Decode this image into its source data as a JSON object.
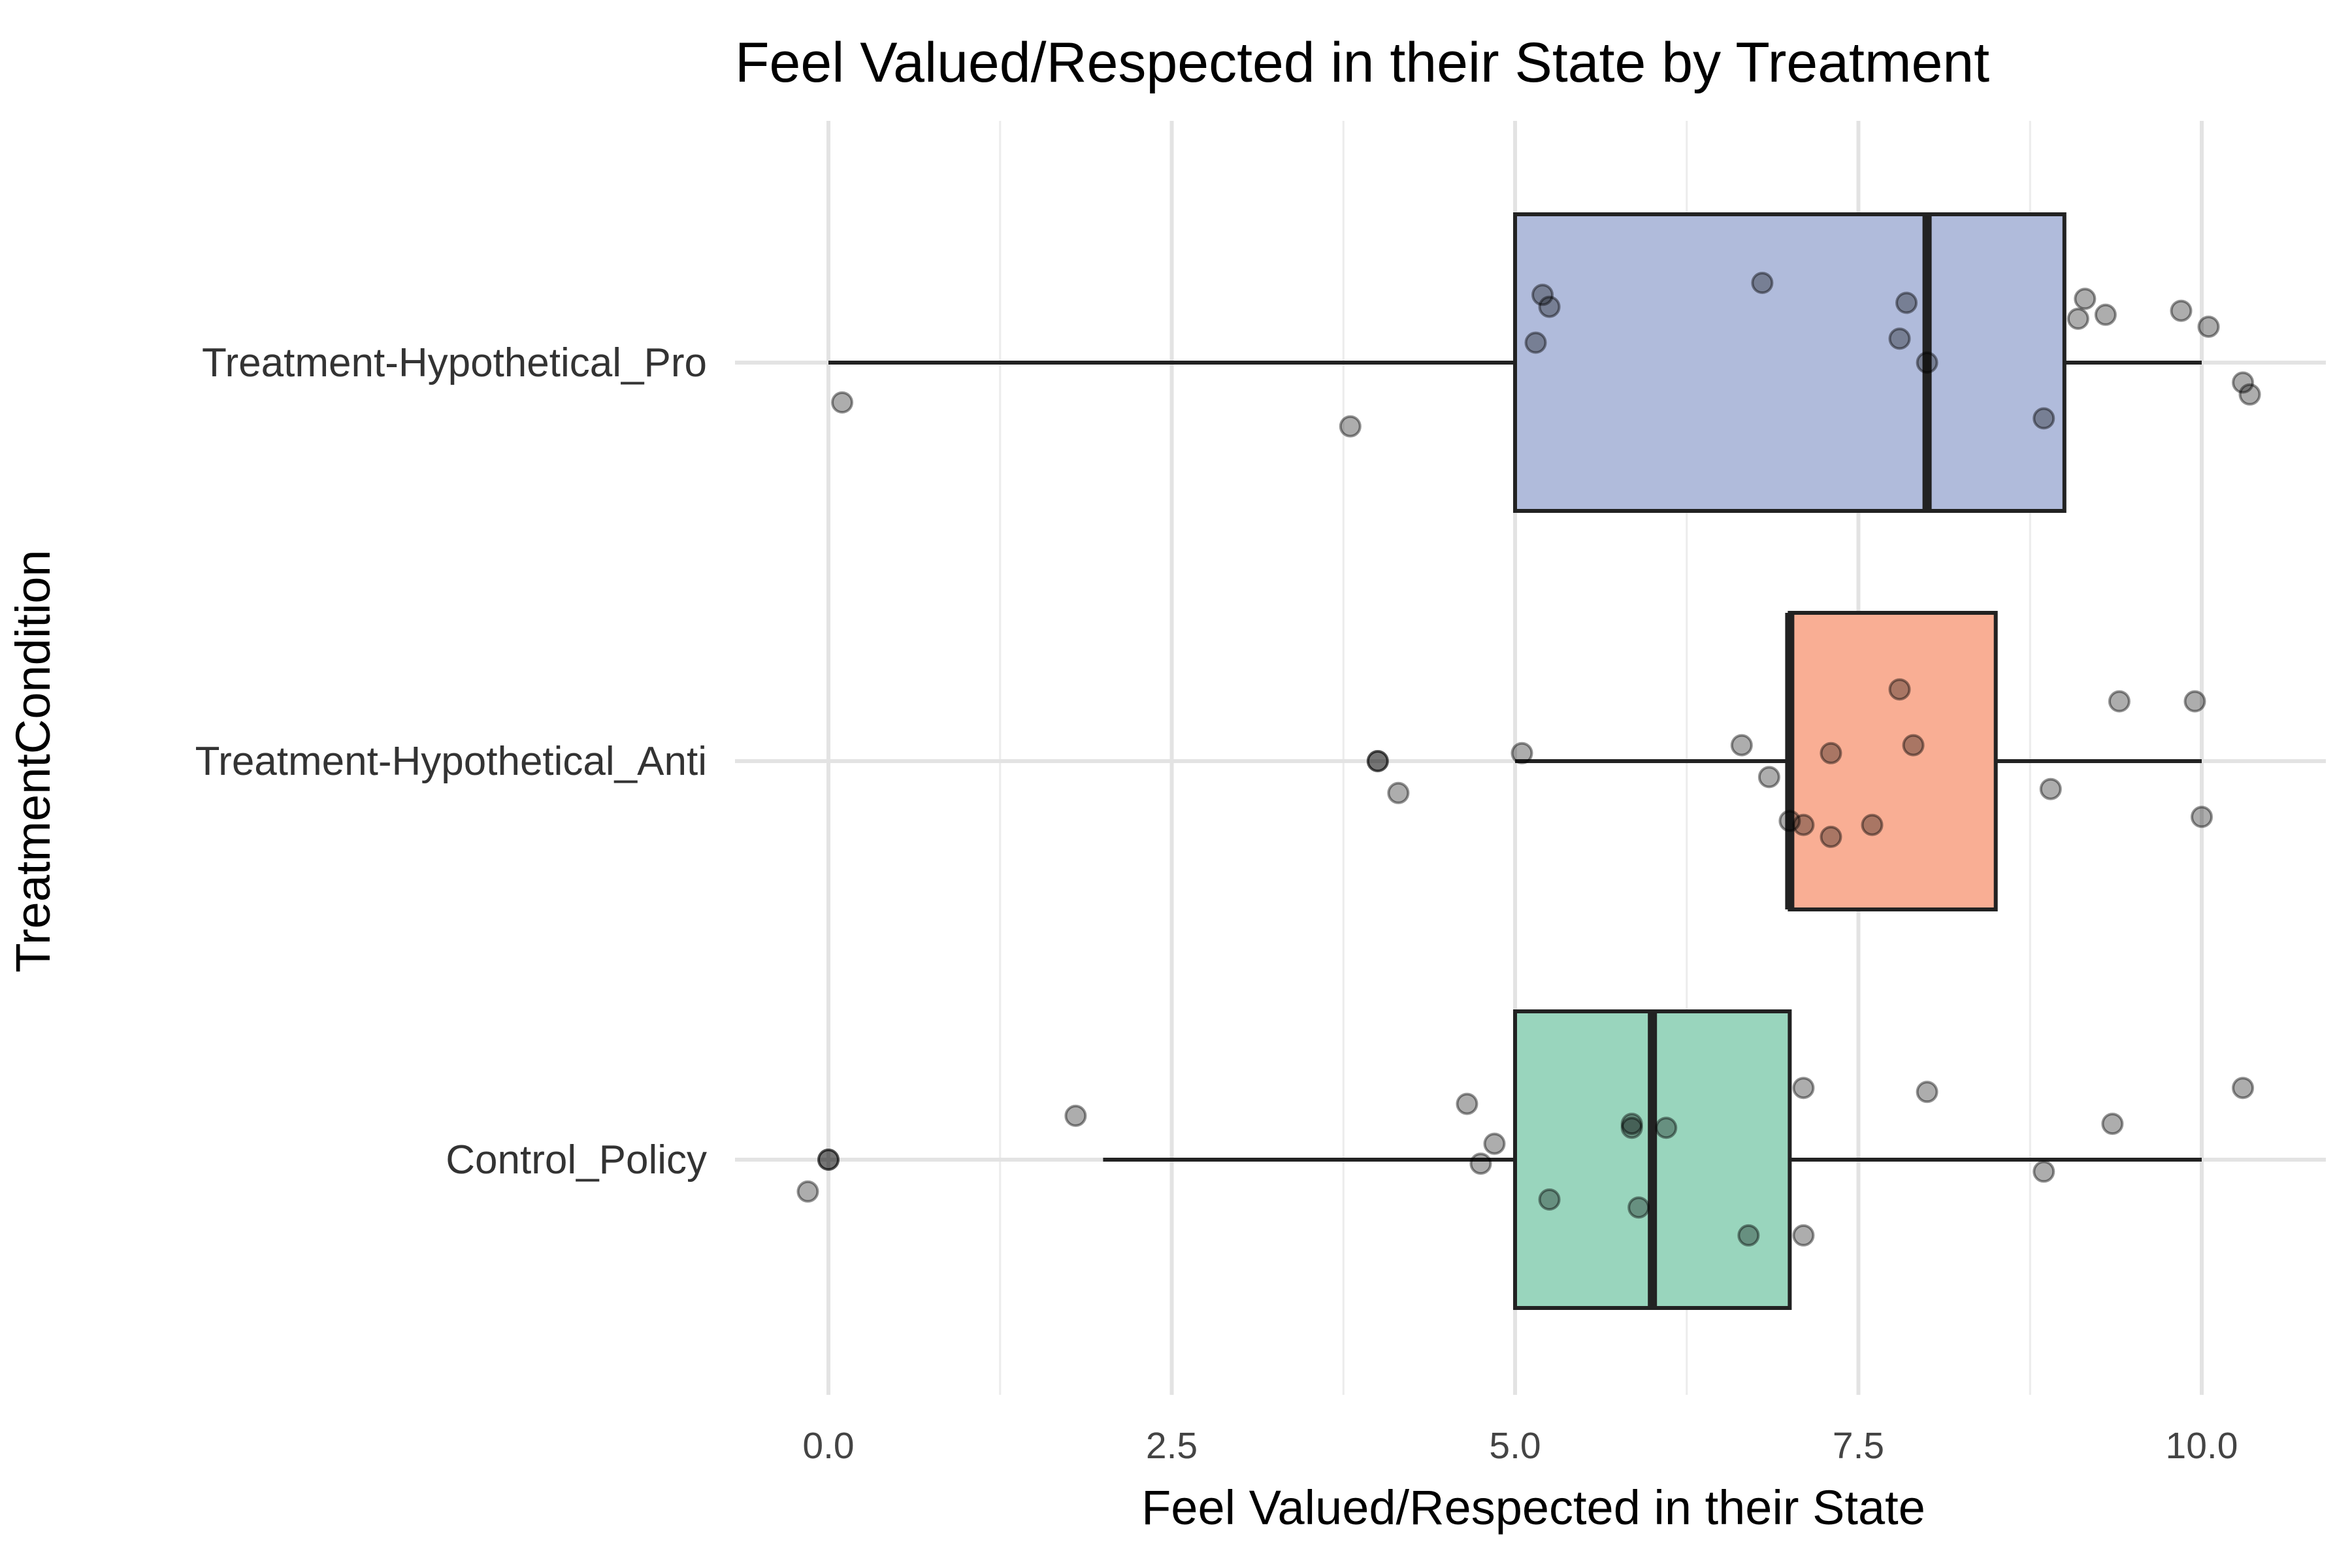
{
  "chart_data": {
    "type": "boxplot",
    "orientation": "horizontal",
    "title": "Feel Valued/Respected in their State by Treatment",
    "xlabel": "Feel Valued/Respected in their State",
    "ylabel": "TreatmentCondition",
    "xlim": [
      -0.6,
      10.9
    ],
    "x_ticks": [
      0,
      2.5,
      5,
      7.5,
      10
    ],
    "x_tick_labels": [
      "0.0",
      "2.5",
      "5.0",
      "7.5",
      "10.0"
    ],
    "grid": true,
    "legend": "none",
    "categories": [
      "Treatment-Hypothetical_Pro",
      "Treatment-Hypothetical_Anti",
      "Control_Policy"
    ],
    "boxes": [
      {
        "category": "Treatment-Hypothetical_Pro",
        "min": 0,
        "q1": 5,
        "median": 8,
        "q3": 9,
        "max": 10,
        "color": "#b0bbdb"
      },
      {
        "category": "Treatment-Hypothetical_Anti",
        "min": 5,
        "q1": 7,
        "median": 7,
        "q3": 8.5,
        "max": 10,
        "color": "#f9ae94"
      },
      {
        "category": "Control_Policy",
        "min": 2,
        "q1": 5,
        "median": 6,
        "q3": 7,
        "max": 10,
        "color": "#99d5bd"
      }
    ],
    "points": [
      {
        "category": "Treatment-Hypothetical_Pro",
        "x": [
          0.1,
          3.8,
          5.15,
          5.2,
          5.25,
          6.8,
          7.8,
          7.85,
          8.0,
          8.85,
          9.1,
          9.15,
          9.3,
          9.85,
          10.05,
          10.3,
          10.35
        ],
        "jitter": [
          -0.1,
          -0.16,
          0.05,
          0.17,
          0.14,
          0.2,
          0.06,
          0.15,
          0.0,
          -0.14,
          0.11,
          0.16,
          0.12,
          0.13,
          0.09,
          -0.05,
          -0.08
        ]
      },
      {
        "category": "Treatment-Hypothetical_Anti",
        "x": [
          4.0,
          4.0,
          4.15,
          5.05,
          6.65,
          6.85,
          7.0,
          7.1,
          7.3,
          7.3,
          7.6,
          7.8,
          7.9,
          8.9,
          9.4,
          9.95,
          10.0
        ],
        "jitter": [
          0.0,
          0.0,
          -0.08,
          0.02,
          0.04,
          -0.04,
          -0.15,
          -0.16,
          0.02,
          -0.19,
          -0.16,
          0.18,
          0.04,
          -0.07,
          0.15,
          0.15,
          -0.14
        ]
      },
      {
        "category": "Control_Policy",
        "x": [
          -0.15,
          0.0,
          0.0,
          1.8,
          4.65,
          4.75,
          4.85,
          5.25,
          5.85,
          5.85,
          5.9,
          6.1,
          6.7,
          7.1,
          7.1,
          8.0,
          8.85,
          9.35,
          10.3
        ],
        "jitter": [
          -0.08,
          0.0,
          0.0,
          0.11,
          0.14,
          -0.01,
          0.04,
          -0.1,
          0.09,
          0.08,
          -0.12,
          0.08,
          -0.19,
          0.18,
          -0.19,
          0.17,
          -0.03,
          0.09,
          0.18
        ]
      }
    ]
  }
}
